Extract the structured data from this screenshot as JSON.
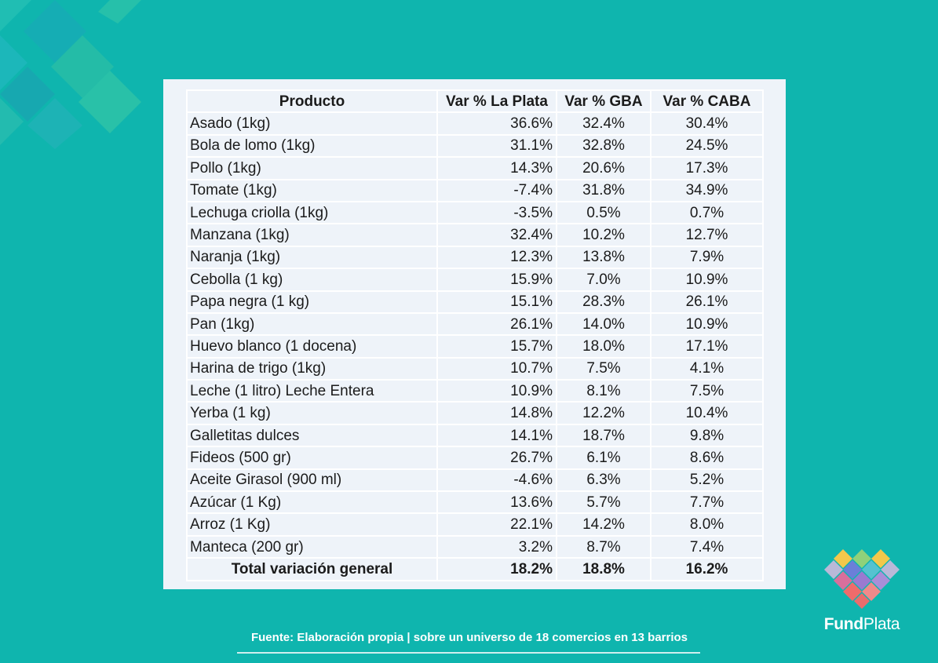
{
  "table": {
    "headers": [
      "Producto",
      "Var % La Plata",
      "Var % GBA",
      "Var % CABA"
    ],
    "rows": [
      [
        "Asado (1kg)",
        "36.6%",
        "32.4%",
        "30.4%"
      ],
      [
        "Bola de lomo (1kg)",
        "31.1%",
        "32.8%",
        "24.5%"
      ],
      [
        "Pollo (1kg)",
        "14.3%",
        "20.6%",
        "17.3%"
      ],
      [
        "Tomate (1kg)",
        "-7.4%",
        "31.8%",
        "34.9%"
      ],
      [
        "Lechuga criolla (1kg)",
        "-3.5%",
        "0.5%",
        "0.7%"
      ],
      [
        "Manzana (1kg)",
        "32.4%",
        "10.2%",
        "12.7%"
      ],
      [
        "Naranja (1kg)",
        "12.3%",
        "13.8%",
        "7.9%"
      ],
      [
        "Cebolla (1 kg)",
        "15.9%",
        "7.0%",
        "10.9%"
      ],
      [
        "Papa negra (1 kg)",
        "15.1%",
        "28.3%",
        "26.1%"
      ],
      [
        "Pan (1kg)",
        "26.1%",
        "14.0%",
        "10.9%"
      ],
      [
        "Huevo blanco (1 docena)",
        "15.7%",
        "18.0%",
        "17.1%"
      ],
      [
        "Harina de trigo (1kg)",
        "10.7%",
        "7.5%",
        "4.1%"
      ],
      [
        "Leche (1 litro) Leche Entera",
        "10.9%",
        "8.1%",
        "7.5%"
      ],
      [
        "Yerba (1 kg)",
        "14.8%",
        "12.2%",
        "10.4%"
      ],
      [
        "Galletitas dulces",
        "14.1%",
        "18.7%",
        "9.8%"
      ],
      [
        "Fideos (500 gr)",
        "26.7%",
        "6.1%",
        "8.6%"
      ],
      [
        "Aceite Girasol (900 ml)",
        "-4.6%",
        "6.3%",
        "5.2%"
      ],
      [
        "Azúcar (1 Kg)",
        "13.6%",
        "5.7%",
        "7.7%"
      ],
      [
        "Arroz (1 Kg)",
        "22.1%",
        "14.2%",
        "8.0%"
      ],
      [
        "Manteca (200 gr)",
        "3.2%",
        "8.7%",
        "7.4%"
      ]
    ],
    "total": [
      "Total variación general",
      "18.2%",
      "18.8%",
      "16.2%"
    ]
  },
  "footer": {
    "source": "Fuente: Elaboración propia | sobre un universo de 18 comercios en 13 barrios"
  },
  "logo": {
    "bold_part": "Fund",
    "light_part": "Plata"
  },
  "colors": {
    "background": "#0fb5ae",
    "panel": "#eef3f9",
    "text": "#1b1b1b"
  },
  "icons": [
    "decorative-diamond-pattern-icon",
    "fundplata-logo-icon"
  ]
}
